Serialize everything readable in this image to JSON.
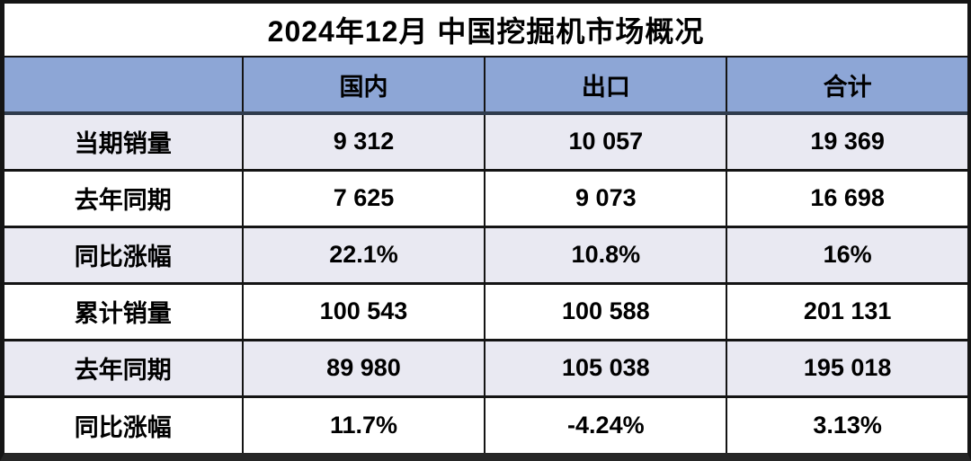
{
  "chart_data": {
    "type": "table",
    "title": "2024年12月 中国挖掘机市场概况",
    "columns": [
      "",
      "国内",
      "出口",
      "合计"
    ],
    "rows": [
      [
        "当期销量",
        "9 312",
        "10 057",
        "19 369"
      ],
      [
        "去年同期",
        "7 625",
        "9 073",
        "16 698"
      ],
      [
        "同比涨幅",
        "22.1%",
        "10.8%",
        "16%"
      ],
      [
        "累计销量",
        "100 543",
        "100 588",
        "201 131"
      ],
      [
        "去年同期",
        "89 980",
        "105 038",
        "195 018"
      ],
      [
        "同比涨幅",
        "11.7%",
        "-4.24%",
        "3.13%"
      ]
    ],
    "layout_hints": {
      "header_position": "top",
      "row_striping": "odd-rows-shaded",
      "grid": true
    }
  },
  "colors": {
    "header_bg": "#8DA6D6",
    "row_alt_bg": "#E9E9F2",
    "row_bg": "#FFFFFF",
    "grid_border": "#141414",
    "header_divider": "#2F3B4D",
    "frame_border": "#151515",
    "text": "#000000"
  }
}
